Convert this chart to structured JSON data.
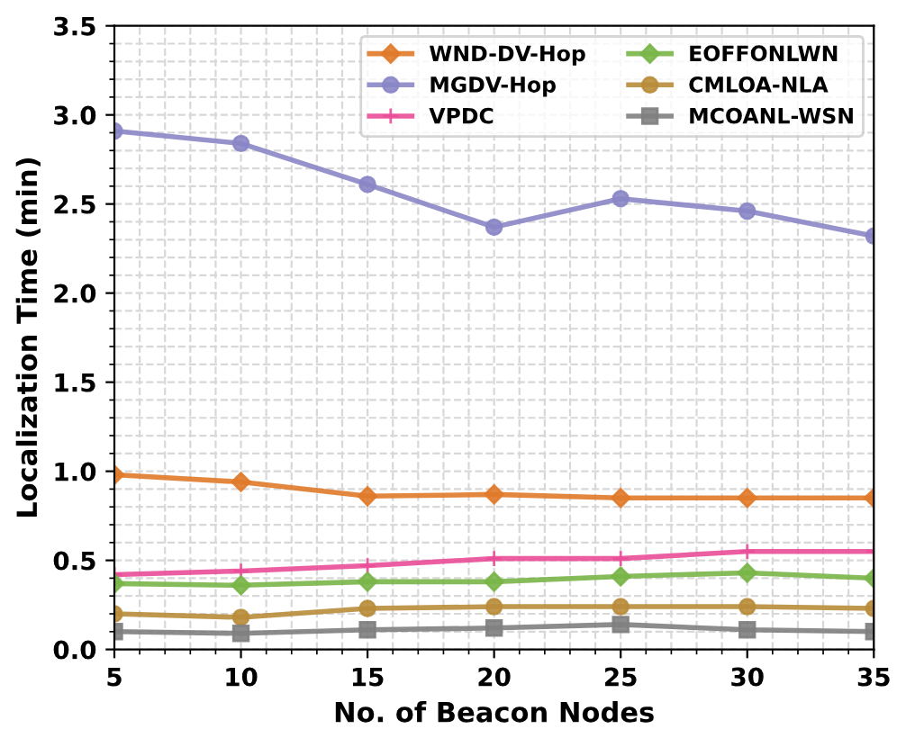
{
  "chart_data": {
    "type": "line",
    "xlabel": "No. of Beacon Nodes",
    "ylabel": "Localization Time (min)",
    "x": [
      5,
      10,
      15,
      20,
      25,
      30,
      35
    ],
    "series": [
      {
        "name": "WND-DV-Hop",
        "color": "#e07a2a",
        "marker": "diamond",
        "values": [
          0.98,
          0.94,
          0.86,
          0.87,
          0.85,
          0.85,
          0.85
        ]
      },
      {
        "name": "MGDV-Hop",
        "color": "#8a86c6",
        "marker": "circle",
        "values": [
          2.91,
          2.84,
          2.61,
          2.37,
          2.53,
          2.46,
          2.32
        ]
      },
      {
        "name": "VPDC",
        "color": "#ea4c98",
        "marker": "cross",
        "values": [
          0.42,
          0.44,
          0.47,
          0.51,
          0.51,
          0.55,
          0.55
        ]
      },
      {
        "name": "EOFFONLWN",
        "color": "#79b548",
        "marker": "diamond",
        "values": [
          0.37,
          0.36,
          0.38,
          0.38,
          0.41,
          0.43,
          0.4
        ]
      },
      {
        "name": "CMLOA-NLA",
        "color": "#b88c3a",
        "marker": "circle",
        "values": [
          0.2,
          0.18,
          0.23,
          0.24,
          0.24,
          0.24,
          0.23
        ]
      },
      {
        "name": "MCOANL-WSN",
        "color": "#7f7f7f",
        "marker": "square",
        "values": [
          0.1,
          0.09,
          0.11,
          0.12,
          0.14,
          0.11,
          0.1
        ]
      }
    ],
    "xlim": [
      5,
      35
    ],
    "xticks": [
      5,
      10,
      15,
      20,
      25,
      30,
      35
    ],
    "ylim": [
      0,
      3.5
    ],
    "yticks": [
      {
        "value": 0,
        "label": "0.0"
      },
      0.5,
      {
        "value": 1,
        "label": "1.0"
      },
      1.5,
      {
        "value": 2,
        "label": "2.0"
      },
      2.5,
      {
        "value": 3,
        "label": "3.0"
      },
      3.5
    ],
    "grid": true,
    "legend": "top right",
    "line_style": "solid"
  }
}
